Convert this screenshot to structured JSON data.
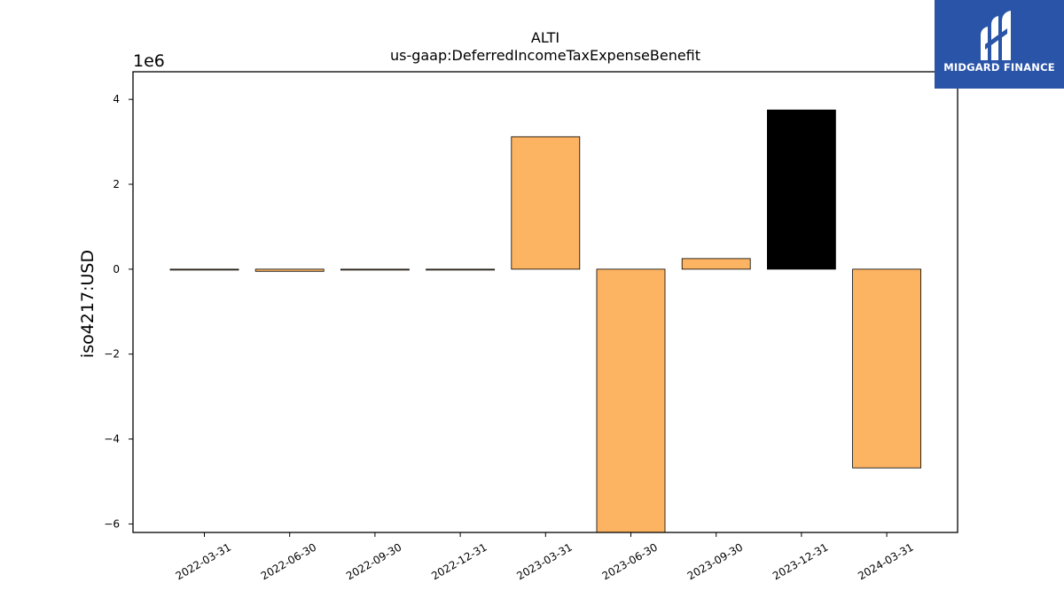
{
  "chart_data": {
    "type": "bar",
    "title": "ALTI",
    "subtitle": "us-gaap:DeferredIncomeTaxExpenseBenefit",
    "ylabel": "iso4217:USD",
    "xlabel": "",
    "y_offset_label": "1e6",
    "ylim": [
      -6.2,
      4.65
    ],
    "yticks": [
      4,
      2,
      0,
      -2,
      -4,
      -6
    ],
    "ytick_labels": [
      "4",
      "2",
      "0",
      "−2",
      "−4",
      "−6"
    ],
    "grid": false,
    "categories": [
      "2022-03-31",
      "2022-06-30",
      "2022-09-30",
      "2022-12-31",
      "2023-03-31",
      "2023-06-30",
      "2023-09-30",
      "2023-12-31",
      "2024-03-31"
    ],
    "values": [
      -0.02,
      -0.05,
      -0.02,
      -0.02,
      3.12,
      -6.2,
      0.25,
      3.75,
      -4.68
    ],
    "bar_colors": [
      "#fdb462",
      "#fdb462",
      "#fdb462",
      "#fdb462",
      "#fdb462",
      "#fdb462",
      "#fdb462",
      "#000000",
      "#fdb462"
    ]
  },
  "logo": {
    "text": "MIDGARD FINANCE",
    "bg_color": "#2a54a8"
  }
}
